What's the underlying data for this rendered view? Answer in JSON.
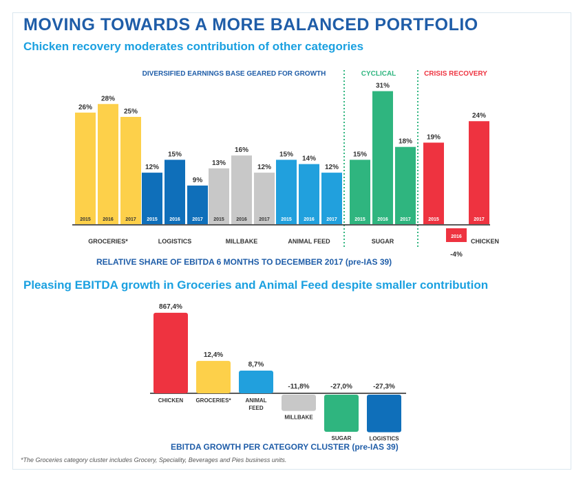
{
  "title": "MOVING TOWARDS A MORE BALANCED PORTFOLIO",
  "subtitle": "Chicken recovery moderates contribution of other categories",
  "subtitle2": "Pleasing EBITDA growth in Groceries and Animal Feed despite smaller contribution",
  "footnote": "*The Groceries category cluster includes Grocery, Speciality, Beverages and Pies business units.",
  "colors": {
    "groceries": "#fdd04a",
    "logistics": "#0f6fba",
    "millbake": "#c8c8c8",
    "animal_feed": "#21a0dd",
    "sugar": "#2fb57f",
    "chicken": "#ee3340",
    "title": "#1f5da8",
    "subtitle": "#1aa0e0",
    "cyclical": "#2fb57f",
    "crisis": "#ee3340"
  },
  "chart_data": [
    {
      "type": "bar",
      "caption": "RELATIVE SHARE OF EBITDA 6 MONTHS TO DECEMBER 2017 (pre-IAS 39)",
      "section_labels": [
        "DIVERSIFIED EARNINGS BASE GEARED FOR GROWTH",
        "CYCLICAL",
        "CRISIS RECOVERY"
      ],
      "groups": [
        {
          "name": "GROCERIES*",
          "color_key": "groceries",
          "bars": [
            {
              "year": "2015",
              "value": 26,
              "label": "26%"
            },
            {
              "year": "2016",
              "value": 28,
              "label": "28%"
            },
            {
              "year": "2017",
              "value": 25,
              "label": "25%"
            }
          ]
        },
        {
          "name": "LOGISTICS",
          "color_key": "logistics",
          "bars": [
            {
              "year": "2015",
              "value": 12,
              "label": "12%"
            },
            {
              "year": "2016",
              "value": 15,
              "label": "15%"
            },
            {
              "year": "2017",
              "value": 9,
              "label": "9%"
            }
          ]
        },
        {
          "name": "MILLBAKE",
          "color_key": "millbake",
          "bars": [
            {
              "year": "2015",
              "value": 13,
              "label": "13%"
            },
            {
              "year": "2016",
              "value": 16,
              "label": "16%"
            },
            {
              "year": "2017",
              "value": 12,
              "label": "12%"
            }
          ]
        },
        {
          "name": "ANIMAL FEED",
          "color_key": "animal_feed",
          "bars": [
            {
              "year": "2015",
              "value": 15,
              "label": "15%"
            },
            {
              "year": "2016",
              "value": 14,
              "label": "14%"
            },
            {
              "year": "2017",
              "value": 12,
              "label": "12%"
            }
          ]
        },
        {
          "name": "SUGAR",
          "color_key": "sugar",
          "bars": [
            {
              "year": "2015",
              "value": 15,
              "label": "15%"
            },
            {
              "year": "2016",
              "value": 31,
              "label": "31%"
            },
            {
              "year": "2017",
              "value": 18,
              "label": "18%"
            }
          ]
        },
        {
          "name": "CHICKEN",
          "color_key": "chicken",
          "bars": [
            {
              "year": "2015",
              "value": 19,
              "label": "19%"
            },
            {
              "year": "2016",
              "value": -4,
              "label": "-4%"
            },
            {
              "year": "2017",
              "value": 24,
              "label": "24%"
            }
          ]
        }
      ]
    },
    {
      "type": "bar",
      "caption": "EBITDA GROWTH PER CATEGORY CLUSTER (pre-IAS 39)",
      "categories": [
        {
          "name": "CHICKEN",
          "value": 867.4,
          "label": "867,4%",
          "color_key": "chicken"
        },
        {
          "name": "GROCERIES*",
          "value": 12.4,
          "label": "12,4%",
          "color_key": "groceries"
        },
        {
          "name": "ANIMAL FEED",
          "value": 8.7,
          "label": "8,7%",
          "color_key": "animal_feed"
        },
        {
          "name": "MILLBAKE",
          "value": -11.8,
          "label": "-11,8%",
          "color_key": "millbake"
        },
        {
          "name": "SUGAR",
          "value": -27.0,
          "label": "-27,0%",
          "color_key": "sugar"
        },
        {
          "name": "LOGISTICS",
          "value": -27.3,
          "label": "-27,3%",
          "color_key": "logistics"
        }
      ]
    }
  ]
}
